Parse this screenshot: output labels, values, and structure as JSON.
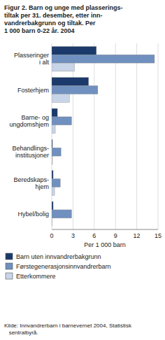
{
  "chart_data": {
    "type": "bar",
    "orientation": "horizontal",
    "title": "Figur 2. Barn og unge med plasserings-\ntiltak per 31. desember, etter inn-\nvandrerbakgrunn og tiltak. Per\n1 000 barn 0-22 år. 2004",
    "categories": [
      "Plasseringer\ni alt",
      "Fosterhjem",
      "Barne- og\nungdomshjem",
      "Behandlings-\ninstitusjoner",
      "Beredskaps-\nhjem",
      "Hybel/bolig"
    ],
    "series": [
      {
        "name": "Barn uten innvandrerbakgrunn",
        "color": "#1b3a6b",
        "values": [
          6.3,
          5.2,
          0.8,
          0.1,
          0.2,
          0.2
        ]
      },
      {
        "name": "Førstegenerasjonsinnvandrerbarn",
        "color": "#7090bf",
        "values": [
          14.5,
          6.5,
          2.8,
          1.3,
          1.2,
          2.8
        ]
      },
      {
        "name": "Etterkommere",
        "color": "#c8d4e8",
        "values": [
          3.2,
          2.5,
          0.5,
          0.1,
          0.4,
          0.05
        ]
      }
    ],
    "xlabel": "Per 1 000 barn",
    "xlim": [
      0,
      15
    ],
    "xticks": [
      0,
      3,
      6,
      9,
      12,
      15
    ],
    "grid": true,
    "legend": "bottom",
    "annotations": [
      "Kilde: Innvandrerbarn i barnevernet 2004, Statistisk\n   sentralbyrå."
    ]
  }
}
